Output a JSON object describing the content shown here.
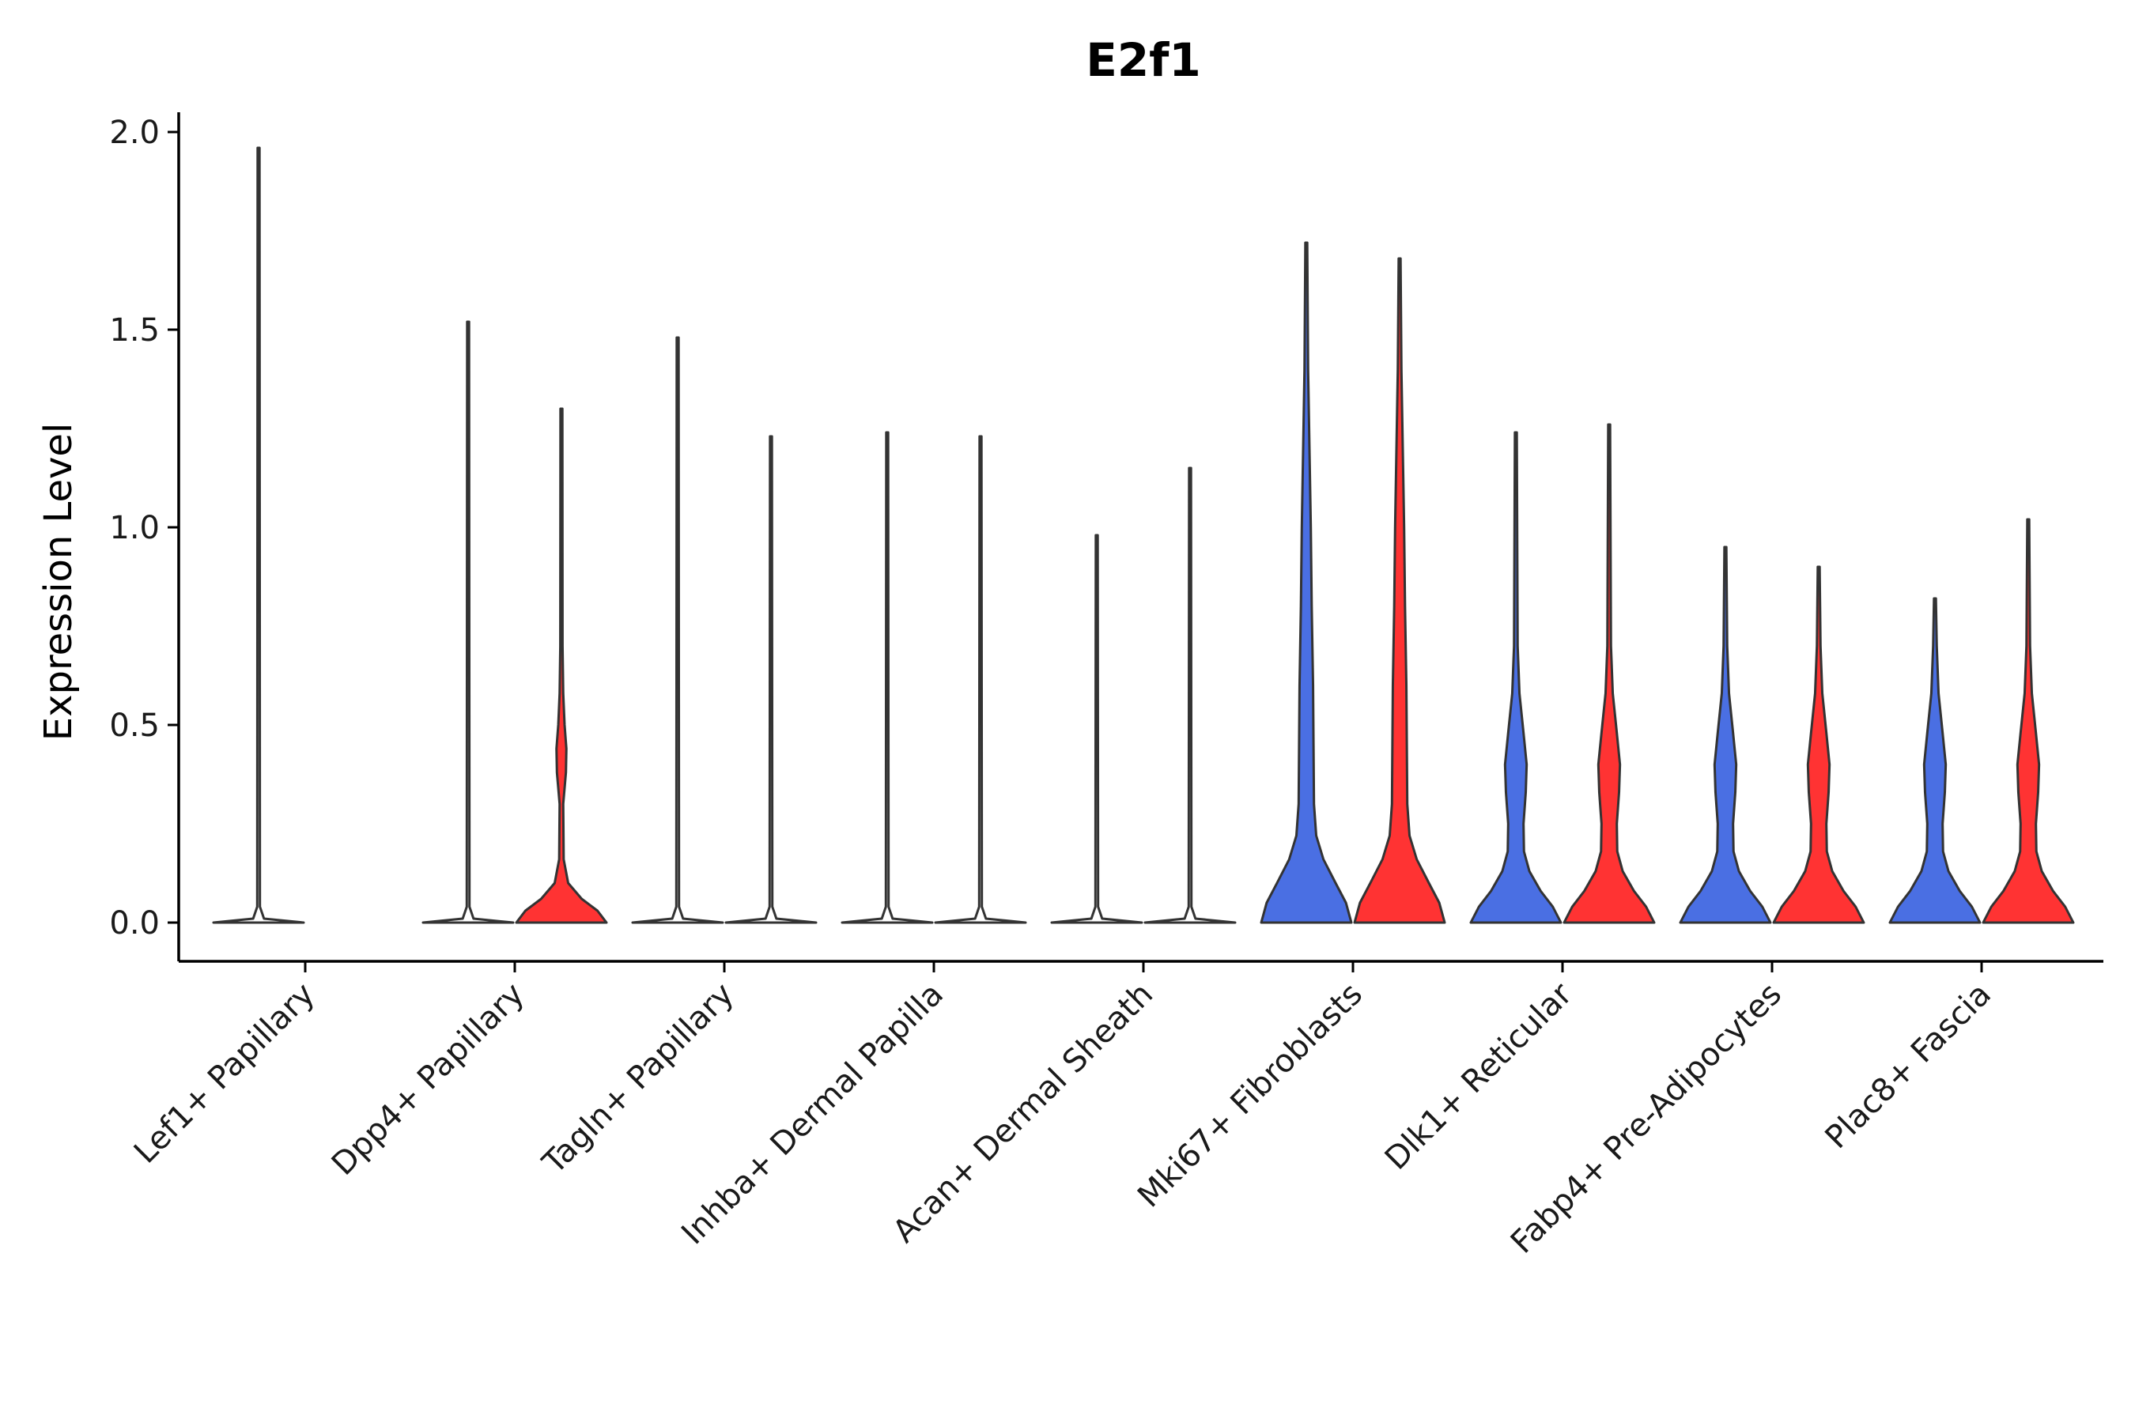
{
  "chart_data": {
    "type": "violin",
    "title": "E2f1",
    "xlabel": "",
    "ylabel": "Expression Level",
    "ylim": [
      -0.1,
      2.05
    ],
    "yticks": [
      0.0,
      0.5,
      1.0,
      1.5,
      2.0
    ],
    "ytick_labels": [
      "0.0",
      "0.5",
      "1.0",
      "1.5",
      "2.0"
    ],
    "colors": {
      "group_a": "#4A6FE3",
      "group_b": "#FF3333",
      "outline": "#333333"
    },
    "categories": [
      "Lef1+ Papillary",
      "Dpp4+ Papillary",
      "Tagln+ Papillary",
      "Inhba+ Dermal Papilla",
      "Acan+ Dermal Sheath",
      "Mki67+ Fibroblasts",
      "Dlk1+ Reticular",
      "Fabp4+ Pre-Adipocytes",
      "Plac8+ Fascia"
    ],
    "violins": [
      {
        "category": "Lef1+ Papillary",
        "group": "a",
        "max": 1.96,
        "profile": "flat"
      },
      {
        "category": "Dpp4+ Papillary",
        "group": "a",
        "max": 1.52,
        "profile": "flat"
      },
      {
        "category": "Dpp4+ Papillary",
        "group": "b",
        "max": 1.3,
        "profile": "low"
      },
      {
        "category": "Tagln+ Papillary",
        "group": "a",
        "max": 1.48,
        "profile": "flat"
      },
      {
        "category": "Tagln+ Papillary",
        "group": "b",
        "max": 1.23,
        "profile": "flat"
      },
      {
        "category": "Inhba+ Dermal Papilla",
        "group": "a",
        "max": 1.24,
        "profile": "flat"
      },
      {
        "category": "Inhba+ Dermal Papilla",
        "group": "b",
        "max": 1.23,
        "profile": "flat"
      },
      {
        "category": "Acan+ Dermal Sheath",
        "group": "a",
        "max": 0.98,
        "profile": "flat"
      },
      {
        "category": "Acan+ Dermal Sheath",
        "group": "b",
        "max": 1.15,
        "profile": "flat"
      },
      {
        "category": "Mki67+ Fibroblasts",
        "group": "a",
        "max": 1.72,
        "profile": "big"
      },
      {
        "category": "Mki67+ Fibroblasts",
        "group": "b",
        "max": 1.68,
        "profile": "big"
      },
      {
        "category": "Dlk1+ Reticular",
        "group": "a",
        "max": 1.24,
        "profile": "mid"
      },
      {
        "category": "Dlk1+ Reticular",
        "group": "b",
        "max": 1.26,
        "profile": "mid"
      },
      {
        "category": "Fabp4+ Pre-Adipocytes",
        "group": "a",
        "max": 0.95,
        "profile": "mid"
      },
      {
        "category": "Fabp4+ Pre-Adipocytes",
        "group": "b",
        "max": 0.9,
        "profile": "mid"
      },
      {
        "category": "Plac8+ Fascia",
        "group": "a",
        "max": 0.82,
        "profile": "mid"
      },
      {
        "category": "Plac8+ Fascia",
        "group": "b",
        "max": 1.02,
        "profile": "mid"
      }
    ]
  }
}
